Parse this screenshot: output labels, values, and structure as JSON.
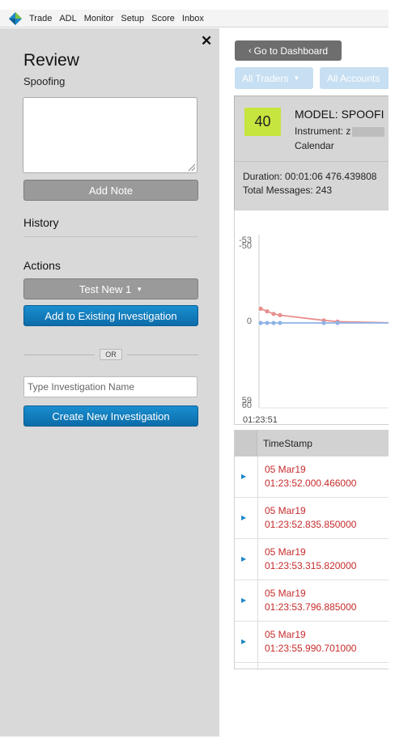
{
  "menubar": {
    "items": [
      "Trade",
      "ADL",
      "Monitor",
      "Setup",
      "Score",
      "Inbox"
    ]
  },
  "review": {
    "title": "Review",
    "subtitle": "Spoofing",
    "add_note_label": "Add Note",
    "history_label": "History",
    "actions_label": "Actions",
    "status_select": "Test New 1",
    "add_existing_label": "Add to Existing Investigation",
    "or_label": "OR",
    "investigation_name_placeholder": "Type Investigation Name",
    "create_label": "Create New Investigation"
  },
  "content": {
    "dashboard_button": "Go to Dashboard",
    "filter_traders": "All Traders",
    "filter_accounts": "All Accounts",
    "score": "40",
    "model": "MODEL: SPOOFI",
    "instrument_label": "Instrument: z",
    "calendar": "Calendar",
    "duration": "Duration: 00:01:06 476.439808",
    "total_messages": "Total Messages: 243"
  },
  "chart_data": {
    "type": "line",
    "title": "",
    "xlabel": "",
    "ylabel": "",
    "y_tick_labels": [
      "-53",
      "-50",
      "0",
      "59",
      "60"
    ],
    "x_tick_labels": [
      "01:23:51"
    ],
    "series": [
      {
        "color": "#e8908f",
        "values": [
          -11,
          -9,
          -7,
          -6,
          -2,
          -1,
          0
        ]
      },
      {
        "color": "#8fb3e6",
        "values": [
          0,
          0,
          0,
          0,
          0,
          0,
          0
        ]
      }
    ],
    "grid": false
  },
  "table": {
    "header": "TimeStamp",
    "rows": [
      {
        "date": "05 Mar19",
        "time": "01:23:52.000.466000"
      },
      {
        "date": "05 Mar19",
        "time": "01:23:52.835.850000"
      },
      {
        "date": "05 Mar19",
        "time": "01:23:53.315.820000"
      },
      {
        "date": "05 Mar19",
        "time": "01:23:53.796.885000"
      },
      {
        "date": "05 Mar19",
        "time": "01:23:55.990.701000"
      }
    ]
  },
  "colors": {
    "score_badge": "#c6e53e",
    "primary_button": "#1a8ed0",
    "timestamp_text": "#c62b2b",
    "panel_bg": "#d9d9d9"
  }
}
